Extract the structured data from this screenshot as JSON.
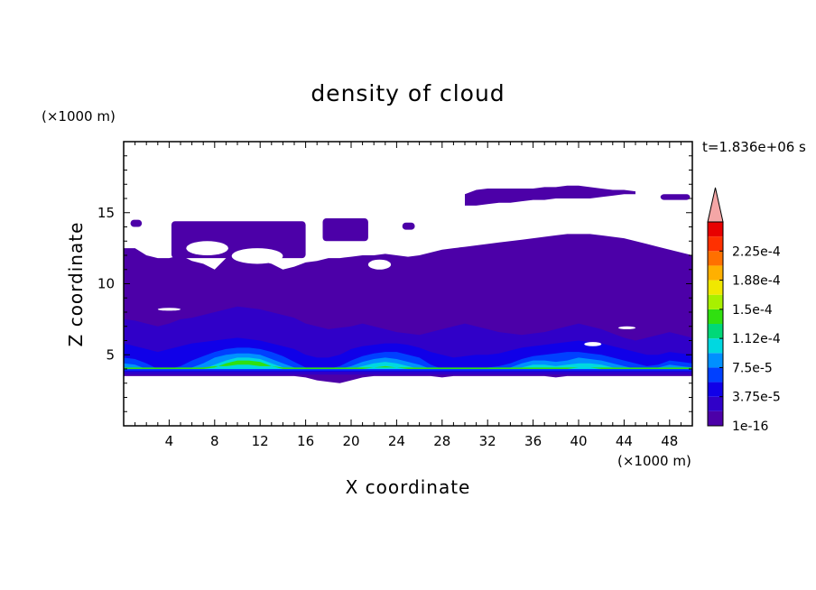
{
  "chart_data": {
    "type": "heatmap",
    "title": "density of cloud",
    "xlabel": "X coordinate",
    "ylabel": "Z coordinate",
    "x_unit": "(×1000 m)",
    "y_unit": "(×1000 m)",
    "time_label": "t=1.836e+06 s",
    "xlim": [
      0,
      50
    ],
    "ylim": [
      0,
      20
    ],
    "x_ticks": [
      4,
      8,
      12,
      16,
      20,
      24,
      28,
      32,
      36,
      40,
      44,
      48
    ],
    "x_tick_labels": [
      "4",
      "8",
      "12",
      "16",
      "20",
      "24",
      "28",
      "32",
      "36",
      "40",
      "44",
      "48"
    ],
    "y_ticks": [
      5,
      10,
      15
    ],
    "y_tick_labels": [
      "5",
      "10",
      "15"
    ],
    "colorbar": {
      "levels": [
        1e-16,
        1.875e-05,
        3.75e-05,
        5.625e-05,
        7.5e-05,
        9.375e-05,
        0.0001125,
        0.00013125,
        0.00015,
        0.00016875,
        0.0001875,
        0.00020625,
        0.000225,
        0.00024375
      ],
      "tick_labels": [
        "1e-16",
        "3.75e-5",
        "7.5e-5",
        "1.12e-4",
        "1.5e-4",
        "1.88e-4",
        "2.25e-4"
      ],
      "tick_values": [
        1e-16,
        3.75e-05,
        7.5e-05,
        0.0001125,
        0.00015,
        0.0001875,
        0.000225
      ],
      "colors": [
        "#4c00a8",
        "#3000c8",
        "#1000e8",
        "#0040ff",
        "#0090ff",
        "#00d8e0",
        "#00d878",
        "#30e010",
        "#a8f000",
        "#f0e800",
        "#ffb000",
        "#ff7000",
        "#ff3000",
        "#e80000"
      ],
      "extend_color": "#f4a6a6"
    },
    "regions": [
      {
        "level": 0,
        "z_top": [
          12.5,
          12.5,
          12.0,
          11.8,
          11.8,
          12.0,
          11.6,
          11.4,
          11.0,
          11.8,
          12.0,
          11.8,
          11.6,
          11.4,
          11.0,
          11.2,
          11.5,
          11.6,
          11.8,
          11.8,
          11.9,
          12.0,
          12.0,
          12.1,
          12.0,
          11.9,
          12.0,
          12.2,
          12.4,
          12.5,
          12.6,
          12.7,
          12.8,
          12.9,
          13.0,
          13.1,
          13.2,
          13.3,
          13.4,
          13.5,
          13.5,
          13.5,
          13.4,
          13.3,
          13.2,
          13.0,
          12.8,
          12.6,
          12.4,
          12.2,
          12.0
        ],
        "z_bottom": [
          3.5,
          3.5,
          3.5,
          3.5,
          3.5,
          3.5,
          3.5,
          3.5,
          3.5,
          3.5,
          3.5,
          3.5,
          3.5,
          3.5,
          3.5,
          3.5,
          3.4,
          3.2,
          3.1,
          3.0,
          3.2,
          3.4,
          3.5,
          3.5,
          3.5,
          3.5,
          3.5,
          3.5,
          3.4,
          3.5,
          3.5,
          3.5,
          3.5,
          3.5,
          3.5,
          3.5,
          3.5,
          3.5,
          3.4,
          3.5,
          3.5,
          3.5,
          3.5,
          3.5,
          3.5,
          3.5,
          3.5,
          3.5,
          3.5,
          3.5,
          3.5
        ]
      },
      {
        "level": 1,
        "z_top": [
          7.5,
          7.4,
          7.2,
          7.0,
          7.2,
          7.5,
          7.6,
          7.8,
          8.0,
          8.2,
          8.4,
          8.3,
          8.2,
          8.0,
          7.8,
          7.6,
          7.2,
          7.0,
          6.8,
          6.9,
          7.0,
          7.2,
          7.0,
          6.8,
          6.6,
          6.5,
          6.4,
          6.6,
          6.8,
          7.0,
          7.2,
          7.0,
          6.8,
          6.6,
          6.5,
          6.4,
          6.5,
          6.6,
          6.8,
          7.0,
          7.2,
          7.0,
          6.8,
          6.5,
          6.2,
          6.0,
          6.2,
          6.4,
          6.6,
          6.4,
          6.2
        ],
        "z_bottom": [
          3.6,
          3.6,
          3.6,
          3.6,
          3.6,
          3.6,
          3.6,
          3.6,
          3.6,
          3.6,
          3.6,
          3.6,
          3.6,
          3.6,
          3.6,
          3.6,
          3.6,
          3.6,
          3.6,
          3.6,
          3.6,
          3.6,
          3.6,
          3.6,
          3.6,
          3.6,
          3.6,
          3.6,
          3.6,
          3.6,
          3.6,
          3.6,
          3.6,
          3.6,
          3.6,
          3.6,
          3.6,
          3.6,
          3.6,
          3.6,
          3.6,
          3.6,
          3.6,
          3.6,
          3.6,
          3.6,
          3.6,
          3.6,
          3.6,
          3.6,
          3.6
        ]
      },
      {
        "level": 2,
        "z_top": [
          5.8,
          5.6,
          5.4,
          5.2,
          5.4,
          5.6,
          5.8,
          5.9,
          6.0,
          6.1,
          6.2,
          6.1,
          6.0,
          5.8,
          5.6,
          5.4,
          5.0,
          4.8,
          4.8,
          5.0,
          5.4,
          5.6,
          5.7,
          5.8,
          5.8,
          5.7,
          5.5,
          5.2,
          5.0,
          4.8,
          4.9,
          5.0,
          5.0,
          5.1,
          5.3,
          5.5,
          5.6,
          5.7,
          5.8,
          5.9,
          6.0,
          5.9,
          5.8,
          5.6,
          5.4,
          5.2,
          5.0,
          5.0,
          5.2,
          5.1,
          5.0
        ],
        "z_bottom": [
          3.8,
          3.8,
          3.8,
          3.8,
          3.8,
          3.8,
          3.8,
          3.8,
          3.8,
          3.8,
          3.8,
          3.8,
          3.8,
          3.8,
          3.8,
          3.8,
          3.8,
          3.8,
          3.8,
          3.8,
          3.8,
          3.8,
          3.8,
          3.8,
          3.8,
          3.8,
          3.8,
          3.8,
          3.8,
          3.8,
          3.8,
          3.8,
          3.8,
          3.8,
          3.8,
          3.8,
          3.8,
          3.8,
          3.8,
          3.8,
          3.8,
          3.8,
          3.8,
          3.8,
          3.8,
          3.8,
          3.8,
          3.8,
          3.8,
          3.8,
          3.8
        ]
      },
      {
        "level": 3,
        "z_top": [
          4.8,
          4.7,
          4.4,
          4.0,
          4.0,
          4.2,
          4.6,
          4.9,
          5.2,
          5.4,
          5.5,
          5.5,
          5.4,
          5.2,
          4.9,
          4.5,
          4.1,
          4.0,
          4.0,
          4.2,
          4.6,
          4.9,
          5.1,
          5.2,
          5.2,
          5.0,
          4.8,
          4.3,
          4.0,
          4.0,
          4.0,
          4.0,
          4.1,
          4.2,
          4.4,
          4.7,
          4.9,
          5.0,
          5.1,
          5.2,
          5.2,
          5.1,
          5.0,
          4.8,
          4.6,
          4.4,
          4.2,
          4.3,
          4.6,
          4.5,
          4.4
        ],
        "z_bottom": [
          3.9,
          3.9,
          3.9,
          3.9,
          3.9,
          3.9,
          3.9,
          3.9,
          3.9,
          3.9,
          3.9,
          3.9,
          3.9,
          3.9,
          3.9,
          3.9,
          3.9,
          3.9,
          3.9,
          3.9,
          3.9,
          3.9,
          3.9,
          3.9,
          3.9,
          3.9,
          3.9,
          3.9,
          3.9,
          3.9,
          3.9,
          3.9,
          3.9,
          3.9,
          3.9,
          3.9,
          3.9,
          3.9,
          3.9,
          3.9,
          3.9,
          3.9,
          3.9,
          3.9,
          3.9,
          3.9,
          3.9,
          3.9,
          3.9,
          3.9,
          3.9
        ]
      },
      {
        "level": 4,
        "z_top": [
          4.4,
          4.3,
          4.0,
          4.0,
          4.0,
          4.0,
          4.1,
          4.4,
          4.8,
          5.0,
          5.1,
          5.1,
          5.0,
          4.7,
          4.4,
          4.1,
          4.0,
          4.0,
          4.0,
          4.0,
          4.2,
          4.5,
          4.7,
          4.8,
          4.7,
          4.5,
          4.3,
          4.0,
          4.0,
          4.0,
          4.0,
          4.0,
          4.0,
          4.0,
          4.1,
          4.4,
          4.6,
          4.6,
          4.5,
          4.6,
          4.8,
          4.7,
          4.6,
          4.4,
          4.2,
          4.0,
          4.0,
          4.1,
          4.3,
          4.2,
          4.1
        ],
        "z_bottom": [
          4.0,
          4.0,
          4.0,
          4.0,
          4.0,
          4.0,
          4.0,
          4.0,
          4.0,
          4.0,
          4.0,
          4.0,
          4.0,
          4.0,
          4.0,
          4.0,
          4.0,
          4.0,
          4.0,
          4.0,
          4.0,
          4.0,
          4.0,
          4.0,
          4.0,
          4.0,
          4.0,
          4.0,
          4.0,
          4.0,
          4.0,
          4.0,
          4.0,
          4.0,
          4.0,
          4.0,
          4.0,
          4.0,
          4.0,
          4.0,
          4.0,
          4.0,
          4.0,
          4.0,
          4.0,
          4.0,
          4.0,
          4.0,
          4.0,
          4.0,
          4.0
        ]
      },
      {
        "level": 5,
        "z_top": [
          4.1,
          4.1,
          4.0,
          4.0,
          4.0,
          4.0,
          4.0,
          4.0,
          4.3,
          4.6,
          4.8,
          4.8,
          4.7,
          4.4,
          4.1,
          4.0,
          4.0,
          4.0,
          4.0,
          4.0,
          4.0,
          4.2,
          4.4,
          4.5,
          4.4,
          4.2,
          4.0,
          4.0,
          4.0,
          4.0,
          4.0,
          4.0,
          4.0,
          4.0,
          4.0,
          4.1,
          4.3,
          4.3,
          4.2,
          4.3,
          4.4,
          4.4,
          4.3,
          4.1,
          4.0,
          4.0,
          4.0,
          4.0,
          4.0,
          4.0,
          4.0
        ],
        "z_bottom": [
          4.0,
          4.0,
          4.0,
          4.0,
          4.0,
          4.0,
          4.0,
          4.0,
          4.0,
          4.0,
          4.0,
          4.0,
          4.0,
          4.0,
          4.0,
          4.0,
          4.0,
          4.0,
          4.0,
          4.0,
          4.0,
          4.0,
          4.0,
          4.0,
          4.0,
          4.0,
          4.0,
          4.0,
          4.0,
          4.0,
          4.0,
          4.0,
          4.0,
          4.0,
          4.0,
          4.0,
          4.0,
          4.0,
          4.0,
          4.0,
          4.0,
          4.0,
          4.0,
          4.0,
          4.0,
          4.0,
          4.0,
          4.0,
          4.0,
          4.0,
          4.0
        ]
      },
      {
        "level": 7,
        "z_top": [
          4.0,
          4.0,
          4.0,
          4.0,
          4.0,
          4.0,
          4.0,
          4.0,
          4.1,
          4.4,
          4.6,
          4.6,
          4.5,
          4.2,
          4.0,
          4.0,
          4.0,
          4.0,
          4.0,
          4.0,
          4.0,
          4.0,
          4.1,
          4.2,
          4.1,
          4.0,
          4.0,
          4.0,
          4.0,
          4.0,
          4.0,
          4.0,
          4.0,
          4.0,
          4.0,
          4.0,
          4.0,
          4.0,
          4.0,
          4.0,
          4.1,
          4.1,
          4.0,
          4.0,
          4.0,
          4.0,
          4.0,
          4.0,
          4.0,
          4.0,
          4.0
        ],
        "z_bottom": [
          4.1,
          4.1,
          4.1,
          4.1,
          4.1,
          4.1,
          4.1,
          4.1,
          4.2,
          4.2,
          4.3,
          4.3,
          4.2,
          4.2,
          4.1,
          4.1,
          4.1,
          4.1,
          4.1,
          4.1,
          4.1,
          4.1,
          4.1,
          4.1,
          4.1,
          4.1,
          4.1,
          4.1,
          4.1,
          4.1,
          4.1,
          4.1,
          4.1,
          4.1,
          4.1,
          4.1,
          4.1,
          4.1,
          4.1,
          4.1,
          4.1,
          4.1,
          4.1,
          4.1,
          4.1,
          4.1,
          4.1,
          4.1,
          4.1,
          4.1,
          4.1
        ]
      }
    ],
    "upper_cloud": {
      "x": [
        30,
        31,
        32,
        33,
        34,
        35,
        36,
        37,
        38,
        39,
        40,
        41,
        42,
        43,
        44,
        45
      ],
      "z_top": [
        16.3,
        16.6,
        16.7,
        16.7,
        16.7,
        16.7,
        16.7,
        16.8,
        16.8,
        16.9,
        16.9,
        16.8,
        16.7,
        16.6,
        16.6,
        16.5
      ],
      "z_bottom": [
        15.5,
        15.5,
        15.6,
        15.7,
        15.7,
        15.8,
        15.9,
        15.9,
        16.0,
        16.0,
        16.0,
        16.0,
        16.1,
        16.2,
        16.3,
        16.3
      ],
      "level": 0
    },
    "small_clouds": [
      {
        "x0": 0.6,
        "x1": 1.6,
        "z0": 14.0,
        "z1": 14.5,
        "level": 0
      },
      {
        "x0": 4.2,
        "x1": 16.0,
        "z0": 11.8,
        "z1": 14.4,
        "level": 0
      },
      {
        "x0": 17.5,
        "x1": 21.5,
        "z0": 13.0,
        "z1": 14.6,
        "level": 0
      },
      {
        "x0": 24.5,
        "x1": 25.6,
        "z0": 13.8,
        "z1": 14.3,
        "level": 0
      },
      {
        "x0": 47.2,
        "x1": 49.8,
        "z0": 15.9,
        "z1": 16.3,
        "level": 0
      }
    ],
    "gaps": [
      {
        "x0": 9.5,
        "x1": 14.0,
        "z0": 11.4,
        "z1": 12.5
      },
      {
        "x0": 5.5,
        "x1": 9.2,
        "z0": 12.0,
        "z1": 13.0
      },
      {
        "x0": 21.5,
        "x1": 23.5,
        "z0": 11.0,
        "z1": 11.7
      },
      {
        "x0": 3.0,
        "x1": 5.0,
        "z0": 8.1,
        "z1": 8.3
      },
      {
        "x0": 43.5,
        "x1": 45.0,
        "z0": 6.8,
        "z1": 7.0
      },
      {
        "x0": 40.5,
        "x1": 42.0,
        "z0": 5.6,
        "z1": 5.9
      }
    ]
  }
}
